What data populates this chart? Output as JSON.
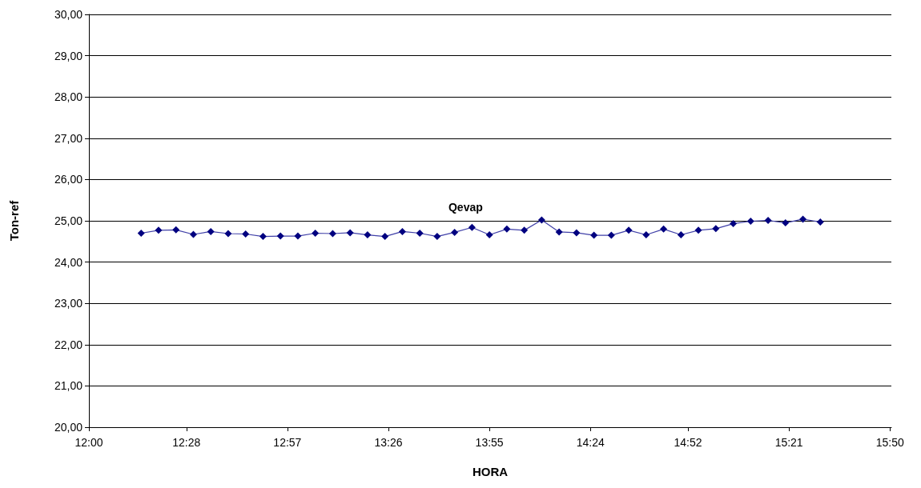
{
  "chart_data": {
    "type": "line",
    "xlabel": "HORA",
    "ylabel": "Ton-ref",
    "x": [
      12.25,
      12.3333,
      12.4167,
      12.5,
      12.5833,
      12.6667,
      12.75,
      12.8333,
      12.9167,
      13,
      13.0833,
      13.1667,
      13.25,
      13.3333,
      13.4167,
      13.5,
      13.5833,
      13.6667,
      13.75,
      13.8333,
      13.9167,
      14,
      14.0833,
      14.1667,
      14.25,
      14.3333,
      14.4167,
      14.5,
      14.5833,
      14.6667,
      14.75,
      14.8333,
      14.9167,
      15,
      15.0833,
      15.1667,
      15.25,
      15.3333,
      15.4167,
      15.5
    ],
    "series": [
      {
        "name": "Qevap",
        "color": "#000080",
        "values": [
          24.7,
          24.77,
          24.78,
          24.67,
          24.74,
          24.69,
          24.68,
          24.62,
          24.63,
          24.63,
          24.7,
          24.69,
          24.71,
          24.66,
          24.62,
          24.74,
          24.7,
          24.62,
          24.72,
          24.84,
          24.66,
          24.8,
          24.77,
          25.02,
          24.73,
          24.71,
          24.65,
          24.65,
          24.77,
          24.66,
          24.8,
          24.66,
          24.77,
          24.81,
          24.93,
          24.99,
          25.01,
          24.95,
          25.04,
          24.97
        ]
      }
    ],
    "xlim": [
      12,
      15.84
    ],
    "xticks": [
      {
        "value": 12,
        "label": "12:00"
      },
      {
        "value": 12.4667,
        "label": "12:28"
      },
      {
        "value": 12.95,
        "label": "12:57"
      },
      {
        "value": 13.4333,
        "label": "13:26"
      },
      {
        "value": 13.9167,
        "label": "13:55"
      },
      {
        "value": 14.4,
        "label": "14:24"
      },
      {
        "value": 14.8667,
        "label": "14:52"
      },
      {
        "value": 15.35,
        "label": "15:21"
      },
      {
        "value": 15.8333,
        "label": "15:50"
      }
    ],
    "ylim": [
      20,
      30
    ],
    "yticks": [
      {
        "value": 20,
        "label": "20,00"
      },
      {
        "value": 21,
        "label": "21,00"
      },
      {
        "value": 22,
        "label": "22,00"
      },
      {
        "value": 23,
        "label": "23,00"
      },
      {
        "value": 24,
        "label": "24,00"
      },
      {
        "value": 25,
        "label": "25,00"
      },
      {
        "value": 26,
        "label": "26,00"
      },
      {
        "value": 27,
        "label": "27,00"
      },
      {
        "value": 28,
        "label": "28,00"
      },
      {
        "value": 29,
        "label": "29,00"
      },
      {
        "value": 30,
        "label": "30,00"
      }
    ],
    "grid": "y",
    "legend": false,
    "marker": "diamond",
    "line_style": "solid"
  }
}
